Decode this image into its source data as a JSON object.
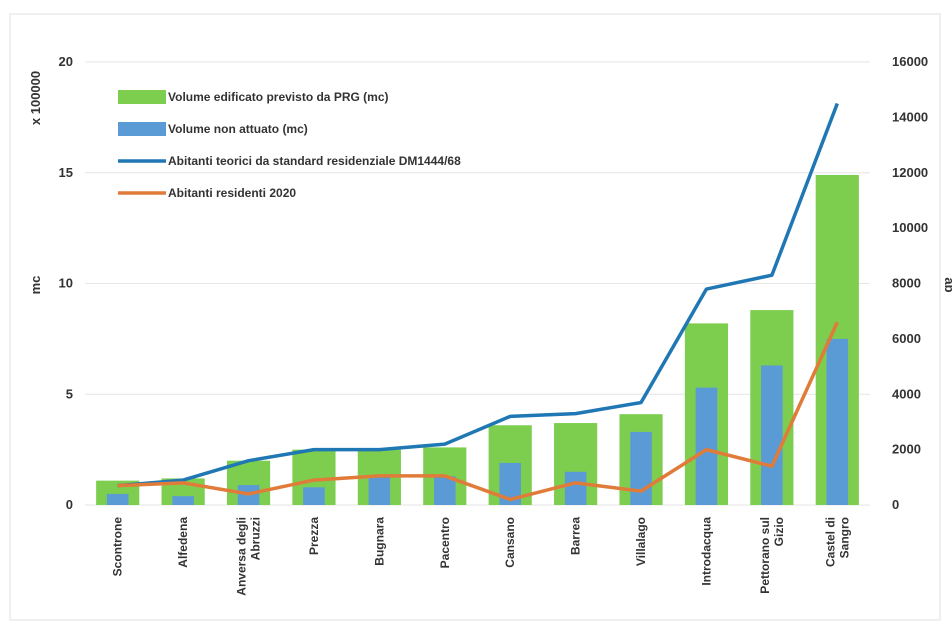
{
  "chart_data": {
    "type": "bar",
    "title": "",
    "categories": [
      "Scontrone",
      "Alfedena",
      "Anversa degli Abruzzi",
      "Prezza",
      "Bugnara",
      "Pacentro",
      "Cansano",
      "Barrea",
      "Villalago",
      "Introdacqua",
      "Pettorano sul Gizio",
      "Castel di Sangro"
    ],
    "category_lines": [
      [
        "Scontrone"
      ],
      [
        "Alfedena"
      ],
      [
        "Anversa degli",
        "Abruzzi"
      ],
      [
        "Prezza"
      ],
      [
        "Bugnara"
      ],
      [
        "Pacentro"
      ],
      [
        "Cansano"
      ],
      [
        "Barrea"
      ],
      [
        "Villalago"
      ],
      [
        "Introdacqua"
      ],
      [
        "Pettorano sul",
        "Gizio"
      ],
      [
        "Castel di",
        "Sangro"
      ]
    ],
    "ylabel": "mc",
    "ylabel_multiplier": "x 100000",
    "ylim": [
      0,
      20
    ],
    "yticks": [
      "0",
      "5",
      "10",
      "15",
      "20"
    ],
    "y2label": "ab",
    "y2lim": [
      0,
      16000
    ],
    "y2ticks": [
      "0",
      "2000",
      "4000",
      "6000",
      "8000",
      "10000",
      "12000",
      "14000",
      "16000"
    ],
    "legend_position": "top-left",
    "grid": true,
    "series": [
      {
        "name": "Volume edificato previsto da PRG (mc)",
        "kind": "bar",
        "axis": "left",
        "color": "#7dce4e",
        "values": [
          1.1,
          1.2,
          2.0,
          2.5,
          2.5,
          2.6,
          3.6,
          3.7,
          4.1,
          8.2,
          8.8,
          14.9
        ]
      },
      {
        "name": "Volume  non attuato (mc)",
        "kind": "bar",
        "axis": "left",
        "color": "#5b9bd5",
        "values": [
          0.5,
          0.4,
          0.9,
          0.8,
          1.3,
          1.3,
          1.9,
          1.5,
          3.3,
          5.3,
          6.3,
          7.5
        ]
      },
      {
        "name": "Abitanti teorici da standard residenziale DM1444/68",
        "kind": "line",
        "axis": "right",
        "color": "#1f77b4",
        "values": [
          700,
          900,
          1600,
          2000,
          2000,
          2200,
          3200,
          3300,
          3700,
          7800,
          8300,
          14500
        ]
      },
      {
        "name": "Abitanti residenti 2020",
        "kind": "line",
        "axis": "right",
        "color": "#e07b39",
        "values": [
          700,
          800,
          400,
          900,
          1050,
          1050,
          200,
          800,
          500,
          2000,
          1400,
          6600
        ]
      }
    ]
  }
}
